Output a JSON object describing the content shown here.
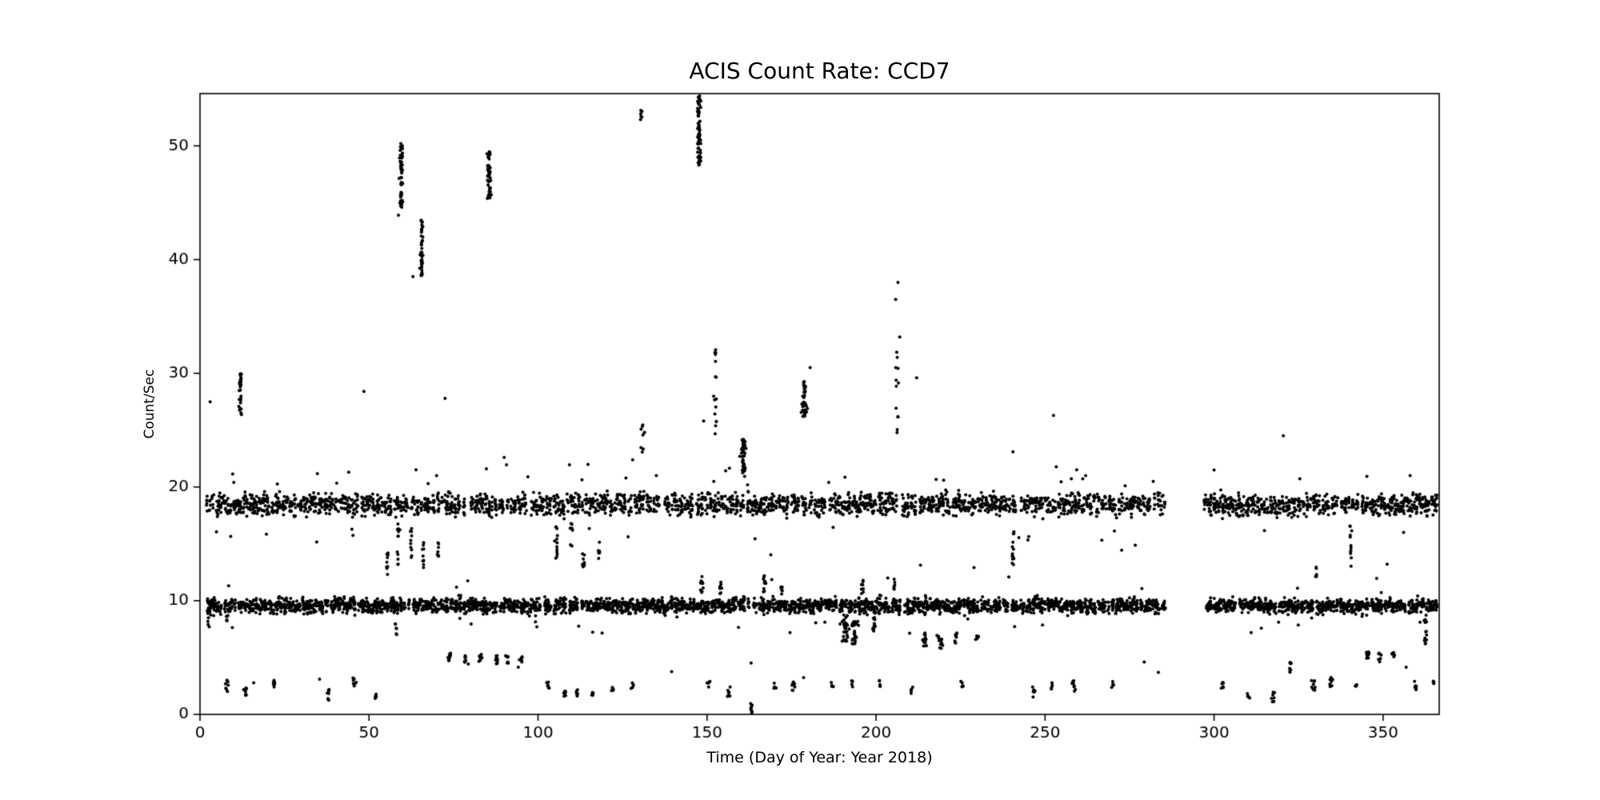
{
  "page": {
    "background": "#ffffff"
  },
  "chart_data": {
    "type": "scatter",
    "title": "ACIS Count Rate: CCD7",
    "xlabel": "Time (Day of Year: Year 2018)",
    "ylabel": "Count/Sec",
    "xlim": [
      0,
      366.6
    ],
    "ylim": [
      0,
      54.6
    ],
    "xticks": [
      0,
      50,
      100,
      150,
      200,
      250,
      300,
      350
    ],
    "yticks": [
      0,
      10,
      20,
      30,
      40,
      50
    ],
    "grid": false,
    "legend": "none",
    "marker_color": "#000000",
    "axis_color": "#000000",
    "seed": 20180707,
    "gaps": [
      [
        285.5,
        296.5
      ]
    ],
    "bands": [
      {
        "name": "upper-band",
        "y_center": 18.45,
        "y_sigma": 0.5,
        "clump_n": 5,
        "clump_prob": 0.85,
        "x_start": 2,
        "x_end": 365.5
      },
      {
        "name": "lower-band",
        "y_center": 9.55,
        "y_sigma": 0.32,
        "clump_n": 6,
        "clump_prob": 0.88,
        "x_start": 2,
        "x_end": 365.5
      }
    ],
    "sparse": [
      [
        2,
        365,
        25,
        10.6,
        16.5
      ],
      [
        2,
        365,
        20,
        19.9,
        22.0
      ],
      [
        2,
        365,
        24,
        7.0,
        8.8
      ],
      [
        2,
        365,
        12,
        2.0,
        5.2
      ]
    ],
    "spikes": [
      [
        59.5,
        0.5,
        44.5,
        50.2,
        55
      ],
      [
        65.6,
        0.45,
        38.3,
        43.5,
        40
      ],
      [
        85.5,
        0.5,
        45.2,
        49.5,
        50
      ],
      [
        147.6,
        0.55,
        48.3,
        54.4,
        75
      ],
      [
        152.5,
        0.4,
        24.5,
        32.2,
        16
      ],
      [
        160.8,
        0.7,
        20.8,
        24.2,
        45
      ],
      [
        178.8,
        0.7,
        26.2,
        29.3,
        40
      ],
      [
        12.0,
        0.5,
        26.3,
        30.0,
        28
      ],
      [
        130.5,
        0.4,
        52.2,
        53.4,
        6
      ],
      [
        130.8,
        0.4,
        23.0,
        25.5,
        8
      ],
      [
        206.2,
        0.5,
        24.3,
        32.0,
        12
      ]
    ],
    "clusters": [
      [
        55.5,
        12.3,
        14.2,
        10,
        0.3
      ],
      [
        58.6,
        13.0,
        16.8,
        12,
        0.3
      ],
      [
        62.5,
        13.5,
        16.5,
        10,
        0.3
      ],
      [
        66.0,
        12.8,
        15.8,
        10,
        0.3
      ],
      [
        70.5,
        13.2,
        15.2,
        8,
        0.3
      ],
      [
        105.5,
        13.0,
        16.5,
        12,
        0.3
      ],
      [
        110.0,
        14.5,
        16.8,
        8,
        0.3
      ],
      [
        113.5,
        12.8,
        14.5,
        8,
        0.3
      ],
      [
        118.0,
        13.5,
        15.5,
        6,
        0.3
      ],
      [
        240.5,
        13.0,
        16.2,
        12,
        0.3
      ],
      [
        340.5,
        13.0,
        16.6,
        12,
        0.3
      ],
      [
        330.0,
        12.0,
        13.2,
        5,
        0.3
      ],
      [
        148.5,
        10.6,
        12.6,
        10,
        0.3
      ],
      [
        154.0,
        10.6,
        11.8,
        8,
        0.3
      ],
      [
        167.0,
        10.6,
        12.2,
        10,
        0.3
      ],
      [
        172.0,
        10.5,
        11.5,
        6,
        0.3
      ],
      [
        196.0,
        10.6,
        12.0,
        8,
        0.3
      ],
      [
        205.5,
        10.8,
        12.3,
        6,
        0.3
      ],
      [
        190.8,
        6.3,
        8.8,
        36,
        0.9
      ],
      [
        193.8,
        6.0,
        8.2,
        28,
        0.8
      ],
      [
        199.5,
        7.3,
        8.6,
        12,
        0.4
      ],
      [
        214.5,
        6.0,
        7.3,
        14,
        0.5
      ],
      [
        219.0,
        5.8,
        7.0,
        12,
        0.5
      ],
      [
        223.5,
        6.2,
        7.2,
        8,
        0.4
      ],
      [
        230.0,
        6.3,
        7.0,
        6,
        0.3
      ],
      [
        58.0,
        6.8,
        8.0,
        6,
        0.3
      ],
      [
        362.5,
        6.2,
        9.0,
        16,
        0.5
      ],
      [
        8.0,
        7.8,
        8.8,
        6,
        0.3
      ],
      [
        2.5,
        7.5,
        9.2,
        8,
        0.4
      ],
      [
        74.0,
        4.6,
        5.4,
        10,
        0.5
      ],
      [
        78.5,
        4.4,
        5.2,
        10,
        0.5
      ],
      [
        83.0,
        4.6,
        5.3,
        8,
        0.5
      ],
      [
        87.5,
        4.4,
        5.2,
        10,
        0.5
      ],
      [
        91.0,
        4.5,
        5.2,
        8,
        0.5
      ],
      [
        95.0,
        4.6,
        5.4,
        6,
        0.4
      ],
      [
        345.5,
        4.8,
        5.6,
        10,
        0.5
      ],
      [
        349.0,
        4.6,
        5.4,
        8,
        0.5
      ],
      [
        353.0,
        4.8,
        5.5,
        8,
        0.5
      ],
      [
        322.5,
        3.6,
        4.6,
        8,
        0.4
      ],
      [
        8.0,
        2.0,
        3.0,
        8,
        0.4
      ],
      [
        13.5,
        1.6,
        2.6,
        8,
        0.4
      ],
      [
        22.0,
        2.4,
        3.0,
        6,
        0.3
      ],
      [
        38.0,
        1.2,
        2.2,
        8,
        0.4
      ],
      [
        45.5,
        2.4,
        3.2,
        8,
        0.4
      ],
      [
        52.0,
        1.4,
        1.9,
        5,
        0.3
      ],
      [
        103.0,
        2.3,
        2.9,
        6,
        0.3
      ],
      [
        108.0,
        1.5,
        2.2,
        8,
        0.4
      ],
      [
        111.5,
        1.6,
        2.3,
        6,
        0.3
      ],
      [
        116.0,
        1.4,
        2.0,
        5,
        0.3
      ],
      [
        122.0,
        1.8,
        2.4,
        5,
        0.3
      ],
      [
        128.0,
        2.2,
        2.8,
        4,
        0.3
      ],
      [
        150.5,
        2.3,
        2.9,
        5,
        0.3
      ],
      [
        156.5,
        1.5,
        2.5,
        8,
        0.4
      ],
      [
        163.0,
        0.05,
        1.0,
        8,
        0.4
      ],
      [
        170.0,
        2.3,
        2.9,
        5,
        0.3
      ],
      [
        175.5,
        1.9,
        3.0,
        8,
        0.4
      ],
      [
        187.0,
        2.3,
        2.9,
        5,
        0.3
      ],
      [
        193.0,
        2.4,
        3.0,
        4,
        0.3
      ],
      [
        201.0,
        2.4,
        3.0,
        5,
        0.3
      ],
      [
        210.5,
        1.8,
        2.4,
        5,
        0.3
      ],
      [
        225.5,
        2.3,
        2.9,
        5,
        0.3
      ],
      [
        246.5,
        1.5,
        2.5,
        8,
        0.4
      ],
      [
        252.0,
        2.2,
        2.8,
        4,
        0.3
      ],
      [
        258.5,
        2.0,
        3.0,
        8,
        0.4
      ],
      [
        270.0,
        2.3,
        2.9,
        5,
        0.3
      ],
      [
        302.5,
        2.3,
        2.9,
        6,
        0.3
      ],
      [
        310.0,
        1.4,
        2.0,
        5,
        0.3
      ],
      [
        317.5,
        1.0,
        2.0,
        8,
        0.4
      ],
      [
        329.5,
        2.0,
        3.0,
        8,
        0.4
      ],
      [
        334.5,
        2.4,
        3.4,
        8,
        0.4
      ],
      [
        342.0,
        2.3,
        2.9,
        5,
        0.3
      ],
      [
        359.5,
        2.0,
        3.0,
        8,
        0.4
      ],
      [
        365.0,
        2.4,
        3.0,
        4,
        0.3
      ]
    ],
    "singles": [
      [
        3,
        27.5
      ],
      [
        10,
        20.4
      ],
      [
        44,
        21.3
      ],
      [
        48.5,
        28.4
      ],
      [
        58.7,
        43.9
      ],
      [
        63,
        38.5
      ],
      [
        67.5,
        20.3
      ],
      [
        70,
        21.0
      ],
      [
        72.5,
        27.8
      ],
      [
        90,
        22.6
      ],
      [
        97,
        20.9
      ],
      [
        126,
        20.8
      ],
      [
        128,
        22.4
      ],
      [
        131.5,
        24.8
      ],
      [
        135,
        21.0
      ],
      [
        149,
        25.8
      ],
      [
        152,
        20.5
      ],
      [
        162,
        20.2
      ],
      [
        180.5,
        30.5
      ],
      [
        186,
        20.4
      ],
      [
        205.8,
        36.5
      ],
      [
        206.5,
        38.0
      ],
      [
        207,
        33.2
      ],
      [
        212,
        29.6
      ],
      [
        220,
        20.6
      ],
      [
        240.5,
        23.1
      ],
      [
        252.5,
        26.3
      ],
      [
        262,
        21.0
      ],
      [
        282,
        20.5
      ],
      [
        300,
        21.5
      ],
      [
        320.5,
        24.5
      ],
      [
        358,
        21.0
      ]
    ]
  }
}
